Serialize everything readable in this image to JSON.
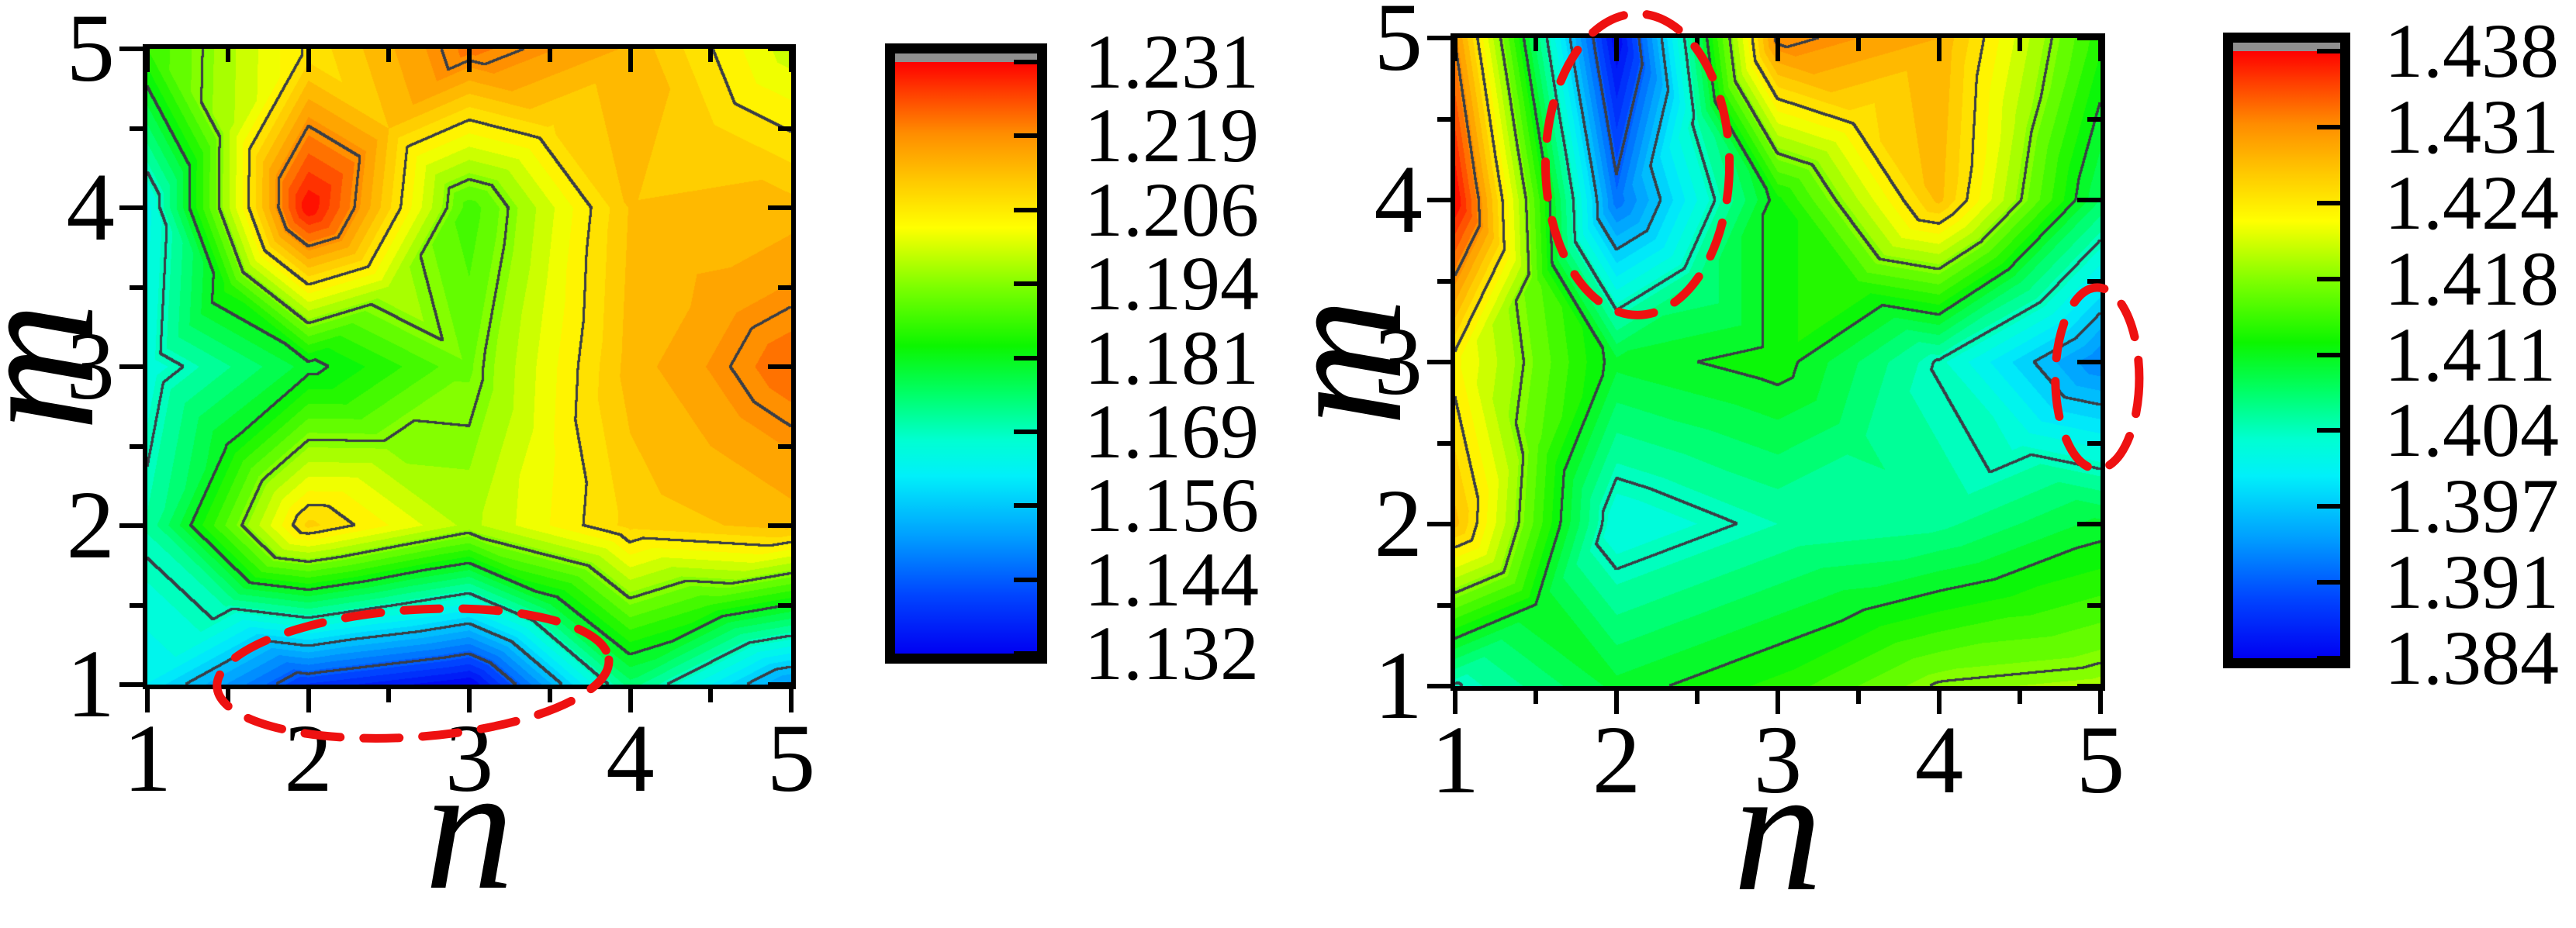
{
  "figure": {
    "background": "#ffffff",
    "contour_line_color": "#3a3e46",
    "annotation_color": "#ee1111",
    "colorbar_overflow_cap_color": "#8f8f8f",
    "colormap": [
      {
        "t": 0.0,
        "c": "#0000f2"
      },
      {
        "t": 0.1,
        "c": "#0046ff"
      },
      {
        "t": 0.2,
        "c": "#00a0ff"
      },
      {
        "t": 0.3,
        "c": "#00f0fa"
      },
      {
        "t": 0.36,
        "c": "#00ffd2"
      },
      {
        "t": 0.44,
        "c": "#00ff66"
      },
      {
        "t": 0.52,
        "c": "#0cf600"
      },
      {
        "t": 0.62,
        "c": "#7dff00"
      },
      {
        "t": 0.72,
        "c": "#ffff00"
      },
      {
        "t": 0.8,
        "c": "#ffc800"
      },
      {
        "t": 0.88,
        "c": "#ff8c00"
      },
      {
        "t": 0.95,
        "c": "#ff3c00"
      },
      {
        "t": 1.0,
        "c": "#ff0000"
      }
    ]
  },
  "chart_data": [
    {
      "type": "filled_contour",
      "xlabel": "n",
      "ylabel": "m",
      "x": [
        1,
        2,
        3,
        4,
        5
      ],
      "y": [
        1,
        2,
        3,
        4,
        5
      ],
      "x_tick_labels": [
        "1",
        "2",
        "3",
        "4",
        "5"
      ],
      "y_tick_labels": [
        "1",
        "2",
        "3",
        "4",
        "5"
      ],
      "zlim": [
        1.132,
        1.231
      ],
      "colorbar_labels": [
        "1.231",
        "1.219",
        "1.206",
        "1.194",
        "1.181",
        "1.169",
        "1.156",
        "1.144",
        "1.132"
      ],
      "values_rows_m1_to_m5": [
        [
          1.162,
          1.14,
          1.132,
          1.175,
          1.15
        ],
        [
          1.171,
          1.21,
          1.197,
          1.21,
          1.213
        ],
        [
          1.166,
          1.18,
          1.192,
          1.213,
          1.222
        ],
        [
          1.164,
          1.231,
          1.188,
          1.212,
          1.213
        ],
        [
          1.187,
          1.207,
          1.221,
          1.214,
          1.199
        ]
      ],
      "annotations": [
        {
          "shape": "dashed-ellipse",
          "cx": 2.65,
          "cy": 1.07,
          "rx": 1.22,
          "ry": 0.4,
          "rotation_deg": -4
        }
      ]
    },
    {
      "type": "filled_contour",
      "xlabel": "n",
      "ylabel": "m",
      "x": [
        1,
        2,
        3,
        4,
        5
      ],
      "y": [
        1,
        2,
        3,
        4,
        5
      ],
      "x_tick_labels": [
        "1",
        "2",
        "3",
        "4",
        "5"
      ],
      "y_tick_labels": [
        "1",
        "2",
        "3",
        "4",
        "5"
      ],
      "zlim": [
        1.384,
        1.438
      ],
      "colorbar_labels": [
        "1.438",
        "1.431",
        "1.424",
        "1.418",
        "1.411",
        "1.404",
        "1.397",
        "1.391",
        "1.384"
      ],
      "values_rows_m1_to_m5": [
        [
          1.404,
          1.41,
          1.413,
          1.418,
          1.419
        ],
        [
          1.428,
          1.402,
          1.405,
          1.406,
          1.41
        ],
        [
          1.4235,
          1.41,
          1.412,
          1.404,
          1.393
        ],
        [
          1.438,
          1.392,
          1.412,
          1.428,
          1.408
        ],
        [
          1.431,
          1.384,
          1.432,
          1.429,
          1.413
        ]
      ],
      "annotations": [
        {
          "shape": "dashed-ellipse",
          "cx": 2.13,
          "cy": 4.22,
          "rx": 0.57,
          "ry": 0.93,
          "rotation_deg": 0
        },
        {
          "shape": "dashed-ellipse",
          "cx": 4.98,
          "cy": 2.9,
          "rx": 0.26,
          "ry": 0.56,
          "rotation_deg": 0
        }
      ]
    }
  ]
}
